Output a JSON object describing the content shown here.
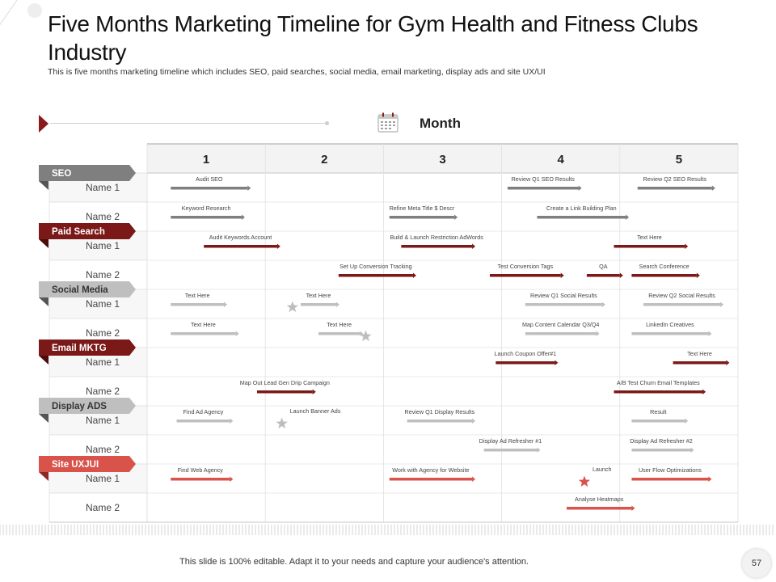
{
  "slide": {
    "title": "Five Months Marketing Timeline for Gym Health and Fitness Clubs Industry",
    "subtitle": "This is five months marketing timeline which includes SEO, paid searches, social media, email marketing, display ads and site UX/UI",
    "month_label": "Month",
    "footer": "This slide is 100% editable. Adapt it to your needs and capture your audience's attention.",
    "page_number": "57"
  },
  "colors": {
    "dark_red": "#7b1818",
    "gray": "#7f7f7f",
    "light_gray": "#bfbfbf",
    "red": "#d9534a"
  },
  "months": [
    "1",
    "2",
    "3",
    "4",
    "5"
  ],
  "categories": [
    {
      "label": "SEO",
      "color": "#7f7f7f",
      "rows": [
        "Name 1",
        "Name 2"
      ]
    },
    {
      "label": "Paid Search",
      "color": "#7b1818",
      "rows": [
        "Name 1",
        "Name 2"
      ]
    },
    {
      "label": "Social Media",
      "color": "#bfbfbf",
      "rows": [
        "Name 1",
        "Name 2"
      ]
    },
    {
      "label": "Email MKTG",
      "color": "#7b1818",
      "rows": [
        "Name 1",
        "Name 2"
      ]
    },
    {
      "label": "Display ADS",
      "color": "#bfbfbf",
      "rows": [
        "Name 1",
        "Name 2"
      ]
    },
    {
      "label": "Site UXJUI",
      "color": "#d9534a",
      "rows": [
        "Name 1",
        "Name 2"
      ]
    }
  ],
  "tasks": [
    {
      "row": 0,
      "start": 0.2,
      "end": 0.85,
      "label": "Audit SEO",
      "color": "gray"
    },
    {
      "row": 0,
      "start": 3.05,
      "end": 3.65,
      "label": "Review Q1 SEO Results",
      "color": "gray"
    },
    {
      "row": 0,
      "start": 4.15,
      "end": 4.78,
      "label": "Review Q2 SEO Results",
      "color": "gray"
    },
    {
      "row": 1,
      "start": 0.2,
      "end": 0.8,
      "label": "Keyword Research",
      "color": "gray"
    },
    {
      "row": 1,
      "start": 2.05,
      "end": 2.6,
      "label": "Refine Meta Title $ Descr",
      "color": "gray"
    },
    {
      "row": 1,
      "start": 3.3,
      "end": 4.05,
      "label": "Create a Link Building Plan",
      "color": "gray"
    },
    {
      "row": 2,
      "start": 0.48,
      "end": 1.1,
      "label": "Audit Keywords Account",
      "color": "dark_red"
    },
    {
      "row": 2,
      "start": 2.15,
      "end": 2.75,
      "label": "Build & Launch Restriction AdWords",
      "color": "dark_red"
    },
    {
      "row": 2,
      "start": 3.95,
      "end": 4.55,
      "label": "Text Here",
      "color": "dark_red"
    },
    {
      "row": 3,
      "start": 1.62,
      "end": 2.25,
      "label": "Set Up Conversion Tracking",
      "color": "dark_red"
    },
    {
      "row": 3,
      "start": 2.9,
      "end": 3.5,
      "label": "Test Conversion Tags",
      "color": "dark_red"
    },
    {
      "row": 3,
      "start": 3.72,
      "end": 4.0,
      "label": "QA",
      "color": "dark_red"
    },
    {
      "row": 3,
      "start": 4.1,
      "end": 4.65,
      "label": "Search Conference",
      "color": "dark_red"
    },
    {
      "row": 4,
      "start": 0.2,
      "end": 0.65,
      "label": "Text Here",
      "color": "light_gray"
    },
    {
      "row": 4,
      "start": 1.3,
      "end": 1.6,
      "label": "Text Here",
      "color": "light_gray"
    },
    {
      "row": 4,
      "start": 3.2,
      "end": 3.85,
      "label": "Review Q1 Social Results",
      "color": "light_gray"
    },
    {
      "row": 4,
      "start": 4.2,
      "end": 4.85,
      "label": "Review Q2 Social Results",
      "color": "light_gray"
    },
    {
      "row": 5,
      "start": 0.2,
      "end": 0.75,
      "label": "Text Here",
      "color": "light_gray"
    },
    {
      "row": 5,
      "start": 1.45,
      "end": 1.8,
      "label": "Text Here",
      "color": "light_gray"
    },
    {
      "row": 5,
      "start": 3.2,
      "end": 3.8,
      "label": "Map Content Calendar Q3/Q4",
      "color": "light_gray"
    },
    {
      "row": 5,
      "start": 4.1,
      "end": 4.75,
      "label": "LinkedIn Creatives",
      "color": "light_gray"
    },
    {
      "row": 6,
      "start": 2.95,
      "end": 3.45,
      "label": "Launch Coupon Offer#1",
      "color": "dark_red"
    },
    {
      "row": 6,
      "start": 4.45,
      "end": 4.9,
      "label": "Text Here",
      "color": "dark_red"
    },
    {
      "row": 7,
      "start": 0.93,
      "end": 1.4,
      "label": "Map Out Lead Gen Drip Campaign",
      "color": "dark_red"
    },
    {
      "row": 7,
      "start": 3.95,
      "end": 4.7,
      "label": "A/B Test Churn Email Templates",
      "color": "dark_red"
    },
    {
      "row": 8,
      "start": 0.25,
      "end": 0.7,
      "label": "Find Ad Agency",
      "color": "light_gray"
    },
    {
      "row": 8,
      "start": 2.2,
      "end": 2.75,
      "label": "Review Q1 Display Results",
      "color": "light_gray"
    },
    {
      "row": 8,
      "start": 4.1,
      "end": 4.55,
      "label": "Result",
      "color": "light_gray"
    },
    {
      "row": 9,
      "start": 2.85,
      "end": 3.3,
      "label": "Display Ad Refresher #1",
      "color": "light_gray"
    },
    {
      "row": 9,
      "start": 4.1,
      "end": 4.6,
      "label": "Display Ad Refresher #2",
      "color": "light_gray"
    },
    {
      "row": 10,
      "start": 0.2,
      "end": 0.7,
      "label": "Find Web Agency",
      "color": "red"
    },
    {
      "row": 10,
      "start": 2.05,
      "end": 2.75,
      "label": "Work with Agency for Website",
      "color": "red"
    },
    {
      "row": 10,
      "start": 4.1,
      "end": 4.75,
      "label": "User Flow Optimizations",
      "color": "red"
    },
    {
      "row": 11,
      "start": 3.55,
      "end": 4.1,
      "label": "Analyse Heatmaps",
      "color": "red"
    }
  ],
  "milestones": [
    {
      "row": 4,
      "at": 1.23,
      "color": "light_gray"
    },
    {
      "row": 5,
      "at": 1.85,
      "color": "light_gray"
    },
    {
      "row": 8,
      "at": 1.14,
      "color": "light_gray",
      "label": "Launch Banner Ads"
    },
    {
      "row": 10,
      "at": 3.7,
      "color": "red",
      "label": "Launch"
    }
  ]
}
